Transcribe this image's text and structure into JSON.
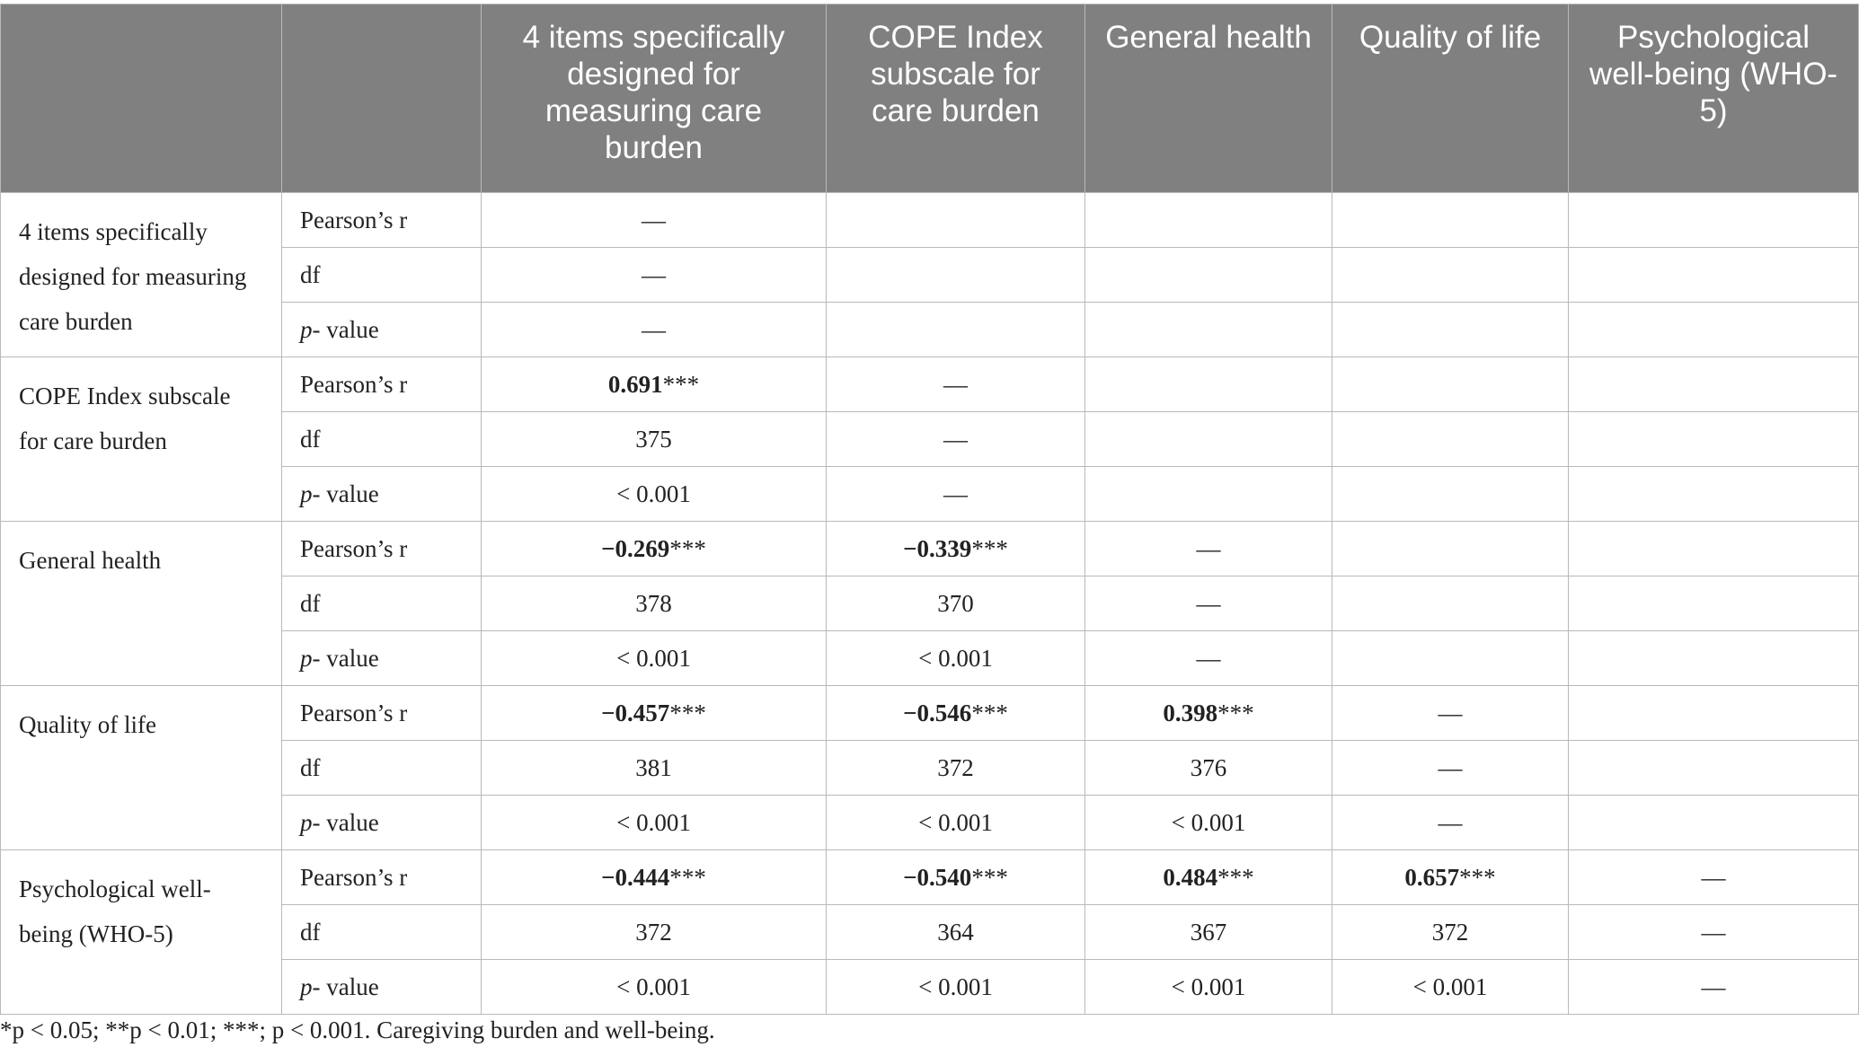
{
  "table": {
    "columns": [
      "",
      "",
      "4 items specifically designed for measuring care burden",
      "COPE Index subscale for care burden",
      "General health",
      "Quality of life",
      "Psychological well-being (WHO-5)"
    ],
    "groups": [
      {
        "label": "4 items specifically designed for measuring care burden",
        "rows": [
          {
            "stat": "Pearson’s r",
            "cells": [
              {
                "v": "—"
              },
              {
                "v": ""
              },
              {
                "v": ""
              },
              {
                "v": ""
              },
              {
                "v": ""
              }
            ]
          },
          {
            "stat": "df",
            "cells": [
              {
                "v": "—"
              },
              {
                "v": ""
              },
              {
                "v": ""
              },
              {
                "v": ""
              },
              {
                "v": ""
              }
            ]
          },
          {
            "stat": "p- value",
            "cells": [
              {
                "v": "—"
              },
              {
                "v": ""
              },
              {
                "v": ""
              },
              {
                "v": ""
              },
              {
                "v": ""
              }
            ]
          }
        ]
      },
      {
        "label": "COPE Index subscale for care burden",
        "rows": [
          {
            "stat": "Pearson’s r",
            "cells": [
              {
                "v": "0.691",
                "sig": "***",
                "bold": true
              },
              {
                "v": "—"
              },
              {
                "v": ""
              },
              {
                "v": ""
              },
              {
                "v": ""
              }
            ]
          },
          {
            "stat": "df",
            "cells": [
              {
                "v": "375"
              },
              {
                "v": "—"
              },
              {
                "v": ""
              },
              {
                "v": ""
              },
              {
                "v": ""
              }
            ]
          },
          {
            "stat": "p- value",
            "cells": [
              {
                "v": "< 0.001"
              },
              {
                "v": "—"
              },
              {
                "v": ""
              },
              {
                "v": ""
              },
              {
                "v": ""
              }
            ]
          }
        ]
      },
      {
        "label": "General health",
        "rows": [
          {
            "stat": "Pearson’s r",
            "cells": [
              {
                "v": "−0.269",
                "sig": "***",
                "bold": true
              },
              {
                "v": "−0.339",
                "sig": "***",
                "bold": true
              },
              {
                "v": "—"
              },
              {
                "v": ""
              },
              {
                "v": ""
              }
            ]
          },
          {
            "stat": "df",
            "cells": [
              {
                "v": "378"
              },
              {
                "v": "370"
              },
              {
                "v": "—"
              },
              {
                "v": ""
              },
              {
                "v": ""
              }
            ]
          },
          {
            "stat": "p- value",
            "cells": [
              {
                "v": "< 0.001"
              },
              {
                "v": "< 0.001"
              },
              {
                "v": "—"
              },
              {
                "v": ""
              },
              {
                "v": ""
              }
            ]
          }
        ]
      },
      {
        "label": "Quality of life",
        "rows": [
          {
            "stat": "Pearson’s r",
            "cells": [
              {
                "v": "−0.457",
                "sig": "***",
                "bold": true
              },
              {
                "v": "−0.546",
                "sig": "***",
                "bold": true
              },
              {
                "v": "0.398",
                "sig": "***",
                "bold": true
              },
              {
                "v": "—"
              },
              {
                "v": ""
              }
            ]
          },
          {
            "stat": "df",
            "cells": [
              {
                "v": "381"
              },
              {
                "v": "372"
              },
              {
                "v": "376"
              },
              {
                "v": "—"
              },
              {
                "v": ""
              }
            ]
          },
          {
            "stat": "p- value",
            "cells": [
              {
                "v": "< 0.001"
              },
              {
                "v": "< 0.001"
              },
              {
                "v": "< 0.001"
              },
              {
                "v": "—"
              },
              {
                "v": ""
              }
            ]
          }
        ]
      },
      {
        "label": "Psychological well-being (WHO-5)",
        "rows": [
          {
            "stat": "Pearson’s r",
            "cells": [
              {
                "v": "−0.444",
                "sig": "***",
                "bold": true
              },
              {
                "v": "−0.540",
                "sig": "***",
                "bold": true
              },
              {
                "v": "0.484",
                "sig": "***",
                "bold": true
              },
              {
                "v": "0.657",
                "sig": "***",
                "bold": true
              },
              {
                "v": "—"
              }
            ]
          },
          {
            "stat": "df",
            "cells": [
              {
                "v": "372"
              },
              {
                "v": "364"
              },
              {
                "v": "367"
              },
              {
                "v": "372"
              },
              {
                "v": "—"
              }
            ]
          },
          {
            "stat": "p- value",
            "cells": [
              {
                "v": "< 0.001"
              },
              {
                "v": "< 0.001"
              },
              {
                "v": "< 0.001"
              },
              {
                "v": "< 0.001"
              },
              {
                "v": "—"
              }
            ]
          }
        ]
      }
    ]
  },
  "footnote": "*p < 0.05; **p < 0.01; ***; p < 0.001. Caregiving burden and well-being."
}
